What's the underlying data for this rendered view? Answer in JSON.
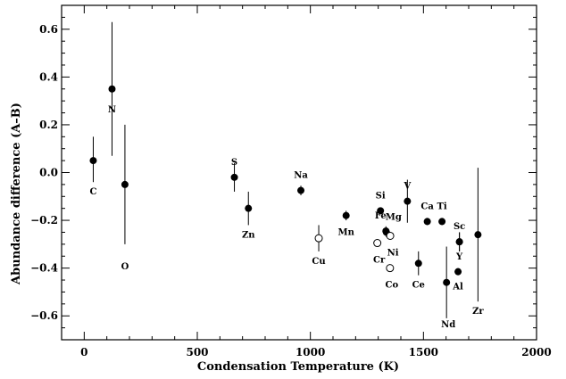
{
  "chart_data": {
    "type": "scatter",
    "title": "",
    "xlabel": "Condensation Temperature (K)",
    "ylabel": "Abundance difference (A–B)",
    "xlim": [
      -100,
      2000
    ],
    "ylim": [
      -0.7,
      0.7
    ],
    "x_ticks": [
      0,
      500,
      1000,
      1500,
      2000
    ],
    "y_ticks": [
      -0.6,
      -0.4,
      -0.2,
      0.0,
      0.2,
      0.4,
      0.6
    ],
    "x_tick_labels": [
      "0",
      "500",
      "1000",
      "1500",
      "2000"
    ],
    "y_tick_labels": [
      "−0.6",
      "−0.4",
      "−0.2",
      "0.0",
      "0.2",
      "0.4",
      "0.6"
    ],
    "grid": false,
    "legend": "none",
    "points": [
      {
        "label": "C",
        "x": 40,
        "y": 0.05,
        "err_lo": -0.04,
        "err_hi": 0.15,
        "filled": true,
        "label_pos": "below"
      },
      {
        "label": "N",
        "x": 123,
        "y": 0.35,
        "err_lo": 0.07,
        "err_hi": 0.63,
        "filled": true,
        "label_pos": "below"
      },
      {
        "label": "O",
        "x": 180,
        "y": -0.05,
        "err_lo": -0.3,
        "err_hi": 0.2,
        "filled": true,
        "label_pos": "below-far"
      },
      {
        "label": "S",
        "x": 664,
        "y": -0.02,
        "err_lo": -0.08,
        "err_hi": 0.04,
        "filled": true,
        "label_pos": "above"
      },
      {
        "label": "Zn",
        "x": 726,
        "y": -0.15,
        "err_lo": -0.22,
        "err_hi": -0.08,
        "filled": true,
        "label_pos": "below"
      },
      {
        "label": "Na",
        "x": 958,
        "y": -0.075,
        "err_lo": -0.095,
        "err_hi": -0.055,
        "filled": true,
        "label_pos": "above"
      },
      {
        "label": "Cu",
        "x": 1037,
        "y": -0.275,
        "err_lo": -0.33,
        "err_hi": -0.22,
        "filled": false,
        "label_pos": "below"
      },
      {
        "label": "Mn",
        "x": 1158,
        "y": -0.18,
        "err_lo": -0.2,
        "err_hi": -0.16,
        "filled": true,
        "label_pos": "below"
      },
      {
        "label": "Si",
        "x": 1310,
        "y": -0.16,
        "err_lo": -0.17,
        "err_hi": -0.15,
        "filled": true,
        "label_pos": "above"
      },
      {
        "label": "Cr",
        "x": 1296,
        "y": -0.295,
        "err_lo": -0.31,
        "err_hi": -0.28,
        "filled": false,
        "label_pos": "below"
      },
      {
        "label": "Fe",
        "x": 1334,
        "y": -0.245,
        "err_lo": -0.265,
        "err_hi": -0.225,
        "filled": true,
        "label_pos": "above"
      },
      {
        "label": "Mg",
        "x": 1336,
        "y": -0.25,
        "err_lo": -0.27,
        "err_hi": -0.23,
        "filled": true,
        "label_pos": "above-right"
      },
      {
        "label": "Ni",
        "x": 1353,
        "y": -0.265,
        "err_lo": -0.28,
        "err_hi": -0.25,
        "filled": false,
        "label_pos": "below"
      },
      {
        "label": "Co",
        "x": 1352,
        "y": -0.4,
        "err_lo": -0.415,
        "err_hi": -0.385,
        "filled": false,
        "label_pos": "below"
      },
      {
        "label": "V",
        "x": 1429,
        "y": -0.12,
        "err_lo": -0.21,
        "err_hi": -0.03,
        "filled": true,
        "label_pos": "above"
      },
      {
        "label": "Ce",
        "x": 1478,
        "y": -0.38,
        "err_lo": -0.43,
        "err_hi": -0.33,
        "filled": true,
        "label_pos": "below"
      },
      {
        "label": "Ca",
        "x": 1517,
        "y": -0.205,
        "err_lo": -0.22,
        "err_hi": -0.19,
        "filled": true,
        "label_pos": "above"
      },
      {
        "label": "Ti",
        "x": 1582,
        "y": -0.205,
        "err_lo": -0.22,
        "err_hi": -0.19,
        "filled": true,
        "label_pos": "above"
      },
      {
        "label": "Nd",
        "x": 1602,
        "y": -0.46,
        "err_lo": -0.61,
        "err_hi": -0.31,
        "filled": true,
        "label_pos": "below"
      },
      {
        "label": "Sc",
        "x": 1659,
        "y": -0.29,
        "err_lo": -0.33,
        "err_hi": -0.25,
        "filled": true,
        "label_pos": "above"
      },
      {
        "label": "Y",
        "x": 1659,
        "y": -0.29,
        "err_lo": -0.33,
        "err_hi": -0.25,
        "filled": true,
        "label_pos": "below"
      },
      {
        "label": "Al",
        "x": 1653,
        "y": -0.415,
        "err_lo": -0.43,
        "err_hi": -0.4,
        "filled": true,
        "label_pos": "below"
      },
      {
        "label": "Zr",
        "x": 1741,
        "y": -0.26,
        "err_lo": -0.54,
        "err_hi": 0.02,
        "filled": true,
        "label_pos": "below"
      }
    ]
  }
}
